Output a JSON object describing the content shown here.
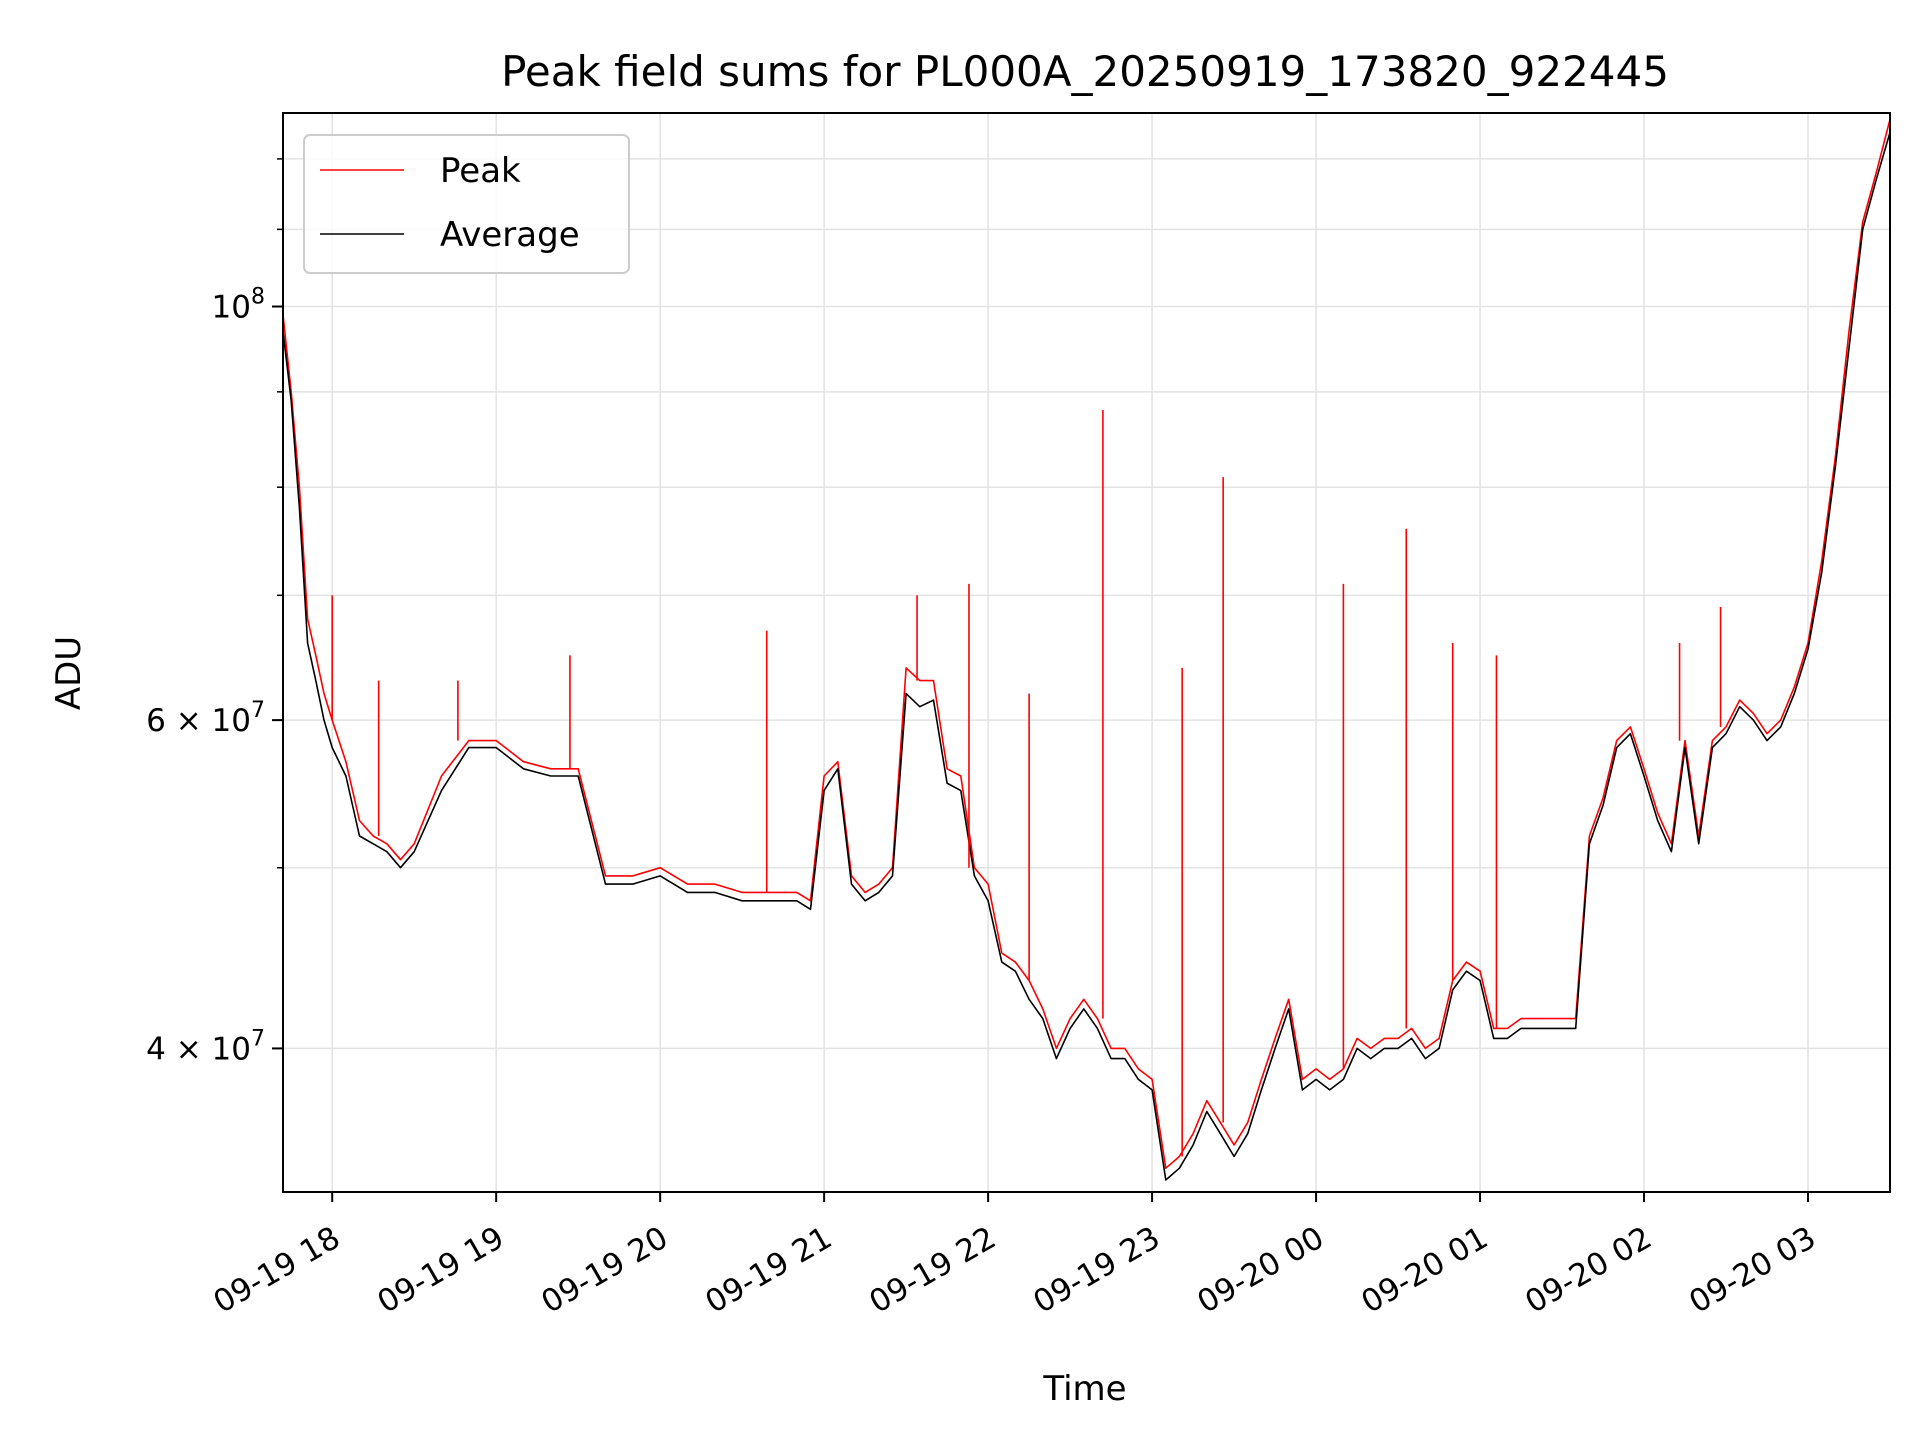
{
  "chart_data": {
    "type": "line",
    "title": "Peak field sums for PL000A_20250919_173820_922445",
    "xlabel": "Time",
    "ylabel": "ADU",
    "y_scale": "log",
    "ylim": [
      33500000,
      127000000
    ],
    "xlim": [
      "09-19 17:42",
      "09-20 03:30"
    ],
    "x_tick_labels": [
      "09-19 18",
      "09-19 19",
      "09-19 20",
      "09-19 21",
      "09-19 22",
      "09-19 23",
      "09-20 00",
      "09-20 01",
      "09-20 02",
      "09-20 03"
    ],
    "y_tick_labels": [
      {
        "value": 100000000,
        "base": "10",
        "exp": "8"
      },
      {
        "value": 60000000,
        "base": "6 × 10",
        "exp": "7"
      },
      {
        "value": 40000000,
        "base": "4 × 10",
        "exp": "7"
      }
    ],
    "grid": true,
    "legend_position": "top-left",
    "colors": {
      "Peak": "#ff0000",
      "Average": "#000000"
    },
    "series": [
      {
        "name": "Peak",
        "x": [
          "09-19 17:42",
          "09-19 17:45",
          "09-19 17:48",
          "09-19 17:51",
          "09-19 17:54",
          "09-19 17:57",
          "09-19 18:00",
          "09-19 18:05",
          "09-19 18:10",
          "09-19 18:15",
          "09-19 18:20",
          "09-19 18:25",
          "09-19 18:30",
          "09-19 18:40",
          "09-19 18:50",
          "09-19 19:00",
          "09-19 19:10",
          "09-19 19:20",
          "09-19 19:30",
          "09-19 19:40",
          "09-19 19:50",
          "09-19 20:00",
          "09-19 20:10",
          "09-19 20:20",
          "09-19 20:30",
          "09-19 20:40",
          "09-19 20:50",
          "09-19 20:55",
          "09-19 21:00",
          "09-19 21:05",
          "09-19 21:10",
          "09-19 21:15",
          "09-19 21:20",
          "09-19 21:25",
          "09-19 21:30",
          "09-19 21:35",
          "09-19 21:40",
          "09-19 21:45",
          "09-19 21:50",
          "09-19 21:55",
          "09-19 22:00",
          "09-19 22:05",
          "09-19 22:10",
          "09-19 22:15",
          "09-19 22:20",
          "09-19 22:25",
          "09-19 22:30",
          "09-19 22:35",
          "09-19 22:40",
          "09-19 22:45",
          "09-19 22:50",
          "09-19 22:55",
          "09-19 23:00",
          "09-19 23:05",
          "09-19 23:10",
          "09-19 23:15",
          "09-19 23:20",
          "09-19 23:25",
          "09-19 23:30",
          "09-19 23:35",
          "09-19 23:40",
          "09-19 23:45",
          "09-19 23:50",
          "09-19 23:55",
          "09-20 00:00",
          "09-20 00:05",
          "09-20 00:10",
          "09-20 00:15",
          "09-20 00:20",
          "09-20 00:25",
          "09-20 00:30",
          "09-20 00:35",
          "09-20 00:40",
          "09-20 00:45",
          "09-20 00:50",
          "09-20 00:55",
          "09-20 01:00",
          "09-20 01:05",
          "09-20 01:10",
          "09-20 01:15",
          "09-20 01:20",
          "09-20 01:25",
          "09-20 01:30",
          "09-20 01:35",
          "09-20 01:40",
          "09-20 01:45",
          "09-20 01:50",
          "09-20 01:55",
          "09-20 02:00",
          "09-20 02:05",
          "09-20 02:10",
          "09-20 02:15",
          "09-20 02:20",
          "09-20 02:25",
          "09-20 02:30",
          "09-20 02:35",
          "09-20 02:40",
          "09-20 02:45",
          "09-20 02:50",
          "09-20 02:55",
          "09-20 03:00",
          "09-20 03:05",
          "09-20 03:10",
          "09-20 03:15",
          "09-20 03:20",
          "09-20 03:25",
          "09-20 03:30"
        ],
        "y": [
          99000000,
          90000000,
          80000000,
          68000000,
          65000000,
          62000000,
          60000000,
          57000000,
          53000000,
          52000000,
          51500000,
          50500000,
          51500000,
          56000000,
          58500000,
          58500000,
          57000000,
          56500000,
          56500000,
          49500000,
          49500000,
          50000000,
          49000000,
          49000000,
          48500000,
          48500000,
          48500000,
          48000000,
          56000000,
          57000000,
          49500000,
          48500000,
          49000000,
          50000000,
          64000000,
          63000000,
          63000000,
          56500000,
          56000000,
          50000000,
          49000000,
          45000000,
          44500000,
          43500000,
          42000000,
          40000000,
          41500000,
          42500000,
          41500000,
          40000000,
          40000000,
          39000000,
          38500000,
          34500000,
          35000000,
          36000000,
          37500000,
          36500000,
          35500000,
          36500000,
          38500000,
          40500000,
          42500000,
          38500000,
          39000000,
          38500000,
          39000000,
          40500000,
          40000000,
          40500000,
          40500000,
          41000000,
          40000000,
          40500000,
          43500000,
          44500000,
          44000000,
          41000000,
          41000000,
          41500000,
          41500000,
          41500000,
          41500000,
          41500000,
          52000000,
          54500000,
          58500000,
          59500000,
          56500000,
          53500000,
          51500000,
          58500000,
          52000000,
          58500000,
          59500000,
          61500000,
          60500000,
          59000000,
          60000000,
          62500000,
          66000000,
          73000000,
          83000000,
          97000000,
          111000000,
          118000000,
          126000000
        ]
      },
      {
        "name": "Average",
        "x": [
          "09-19 17:42",
          "09-19 17:45",
          "09-19 17:48",
          "09-19 17:51",
          "09-19 17:54",
          "09-19 17:57",
          "09-19 18:00",
          "09-19 18:05",
          "09-19 18:10",
          "09-19 18:15",
          "09-19 18:20",
          "09-19 18:25",
          "09-19 18:30",
          "09-19 18:40",
          "09-19 18:50",
          "09-19 19:00",
          "09-19 19:10",
          "09-19 19:20",
          "09-19 19:30",
          "09-19 19:40",
          "09-19 19:50",
          "09-19 20:00",
          "09-19 20:10",
          "09-19 20:20",
          "09-19 20:30",
          "09-19 20:40",
          "09-19 20:50",
          "09-19 20:55",
          "09-19 21:00",
          "09-19 21:05",
          "09-19 21:10",
          "09-19 21:15",
          "09-19 21:20",
          "09-19 21:25",
          "09-19 21:30",
          "09-19 21:35",
          "09-19 21:40",
          "09-19 21:45",
          "09-19 21:50",
          "09-19 21:55",
          "09-19 22:00",
          "09-19 22:05",
          "09-19 22:10",
          "09-19 22:15",
          "09-19 22:20",
          "09-19 22:25",
          "09-19 22:30",
          "09-19 22:35",
          "09-19 22:40",
          "09-19 22:45",
          "09-19 22:50",
          "09-19 22:55",
          "09-19 23:00",
          "09-19 23:05",
          "09-19 23:10",
          "09-19 23:15",
          "09-19 23:20",
          "09-19 23:25",
          "09-19 23:30",
          "09-19 23:35",
          "09-19 23:40",
          "09-19 23:45",
          "09-19 23:50",
          "09-19 23:55",
          "09-20 00:00",
          "09-20 00:05",
          "09-20 00:10",
          "09-20 00:15",
          "09-20 00:20",
          "09-20 00:25",
          "09-20 00:30",
          "09-20 00:35",
          "09-20 00:40",
          "09-20 00:45",
          "09-20 00:50",
          "09-20 00:55",
          "09-20 01:00",
          "09-20 01:05",
          "09-20 01:10",
          "09-20 01:15",
          "09-20 01:20",
          "09-20 01:25",
          "09-20 01:30",
          "09-20 01:35",
          "09-20 01:40",
          "09-20 01:45",
          "09-20 01:50",
          "09-20 01:55",
          "09-20 02:00",
          "09-20 02:05",
          "09-20 02:10",
          "09-20 02:15",
          "09-20 02:20",
          "09-20 02:25",
          "09-20 02:30",
          "09-20 02:35",
          "09-20 02:40",
          "09-20 02:45",
          "09-20 02:50",
          "09-20 02:55",
          "09-20 03:00",
          "09-20 03:05",
          "09-20 03:10",
          "09-20 03:15",
          "09-20 03:20",
          "09-20 03:25",
          "09-20 03:30"
        ],
        "y": [
          97000000,
          89000000,
          78000000,
          66000000,
          63000000,
          60000000,
          58000000,
          56000000,
          52000000,
          51500000,
          51000000,
          50000000,
          51000000,
          55000000,
          58000000,
          58000000,
          56500000,
          56000000,
          56000000,
          49000000,
          49000000,
          49500000,
          48500000,
          48500000,
          48000000,
          48000000,
          48000000,
          47500000,
          55000000,
          56500000,
          49000000,
          48000000,
          48500000,
          49500000,
          62000000,
          61000000,
          61500000,
          55500000,
          55000000,
          49500000,
          48000000,
          44500000,
          44000000,
          42500000,
          41500000,
          39500000,
          41000000,
          42000000,
          41000000,
          39500000,
          39500000,
          38500000,
          38000000,
          34000000,
          34500000,
          35500000,
          37000000,
          36000000,
          35000000,
          36000000,
          38000000,
          40000000,
          42000000,
          38000000,
          38500000,
          38000000,
          38500000,
          40000000,
          39500000,
          40000000,
          40000000,
          40500000,
          39500000,
          40000000,
          43000000,
          44000000,
          43500000,
          40500000,
          40500000,
          41000000,
          41000000,
          41000000,
          41000000,
          41000000,
          51500000,
          54000000,
          58000000,
          59000000,
          56000000,
          53000000,
          51000000,
          58000000,
          51500000,
          58000000,
          59000000,
          61000000,
          60000000,
          58500000,
          59500000,
          62000000,
          65500000,
          72000000,
          82000000,
          95000000,
          110000000,
          117000000,
          124000000
        ]
      }
    ],
    "spikes": {
      "note": "",
      "x": [
        "09-19 18:00",
        "09-19 18:17",
        "09-19 18:46",
        "09-19 19:27",
        "09-19 20:39",
        "09-19 21:34",
        "09-19 21:53",
        "09-19 22:15",
        "09-19 22:42",
        "09-19 23:11",
        "09-19 23:26",
        "09-20 00:10",
        "09-20 00:33",
        "09-20 00:50",
        "09-20 01:06",
        "09-20 02:13",
        "09-20 02:28"
      ],
      "y": [
        70000000,
        63000000,
        63000000,
        65000000,
        67000000,
        70000000,
        71000000,
        62000000,
        88000000,
        64000000,
        81000000,
        71000000,
        76000000,
        66000000,
        65000000,
        66000000,
        69000000
      ]
    }
  }
}
